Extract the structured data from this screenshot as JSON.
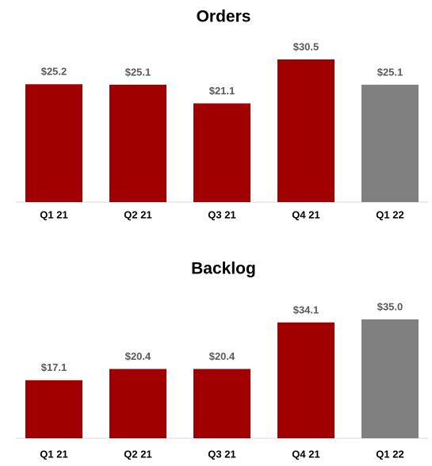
{
  "chart_data": [
    {
      "type": "bar",
      "title": "Orders",
      "categories": [
        "Q1 21",
        "Q2 21",
        "Q3 21",
        "Q4 21",
        "Q1 22"
      ],
      "values": [
        25.2,
        25.1,
        21.1,
        30.5,
        25.1
      ],
      "value_labels": [
        "$25.2",
        "$25.1",
        "$21.1",
        "$30.5",
        "$25.1"
      ],
      "colors": [
        "#a00000",
        "#a00000",
        "#a00000",
        "#a00000",
        "#808080"
      ]
    },
    {
      "type": "bar",
      "title": "Backlog",
      "categories": [
        "Q1 21",
        "Q2 21",
        "Q3 21",
        "Q4 21",
        "Q1 22"
      ],
      "values": [
        17.1,
        20.4,
        20.4,
        34.1,
        35.0
      ],
      "value_labels": [
        "$17.1",
        "$20.4",
        "$20.4",
        "$34.1",
        "$35.0"
      ],
      "colors": [
        "#a00000",
        "#a00000",
        "#a00000",
        "#a00000",
        "#808080"
      ]
    }
  ]
}
